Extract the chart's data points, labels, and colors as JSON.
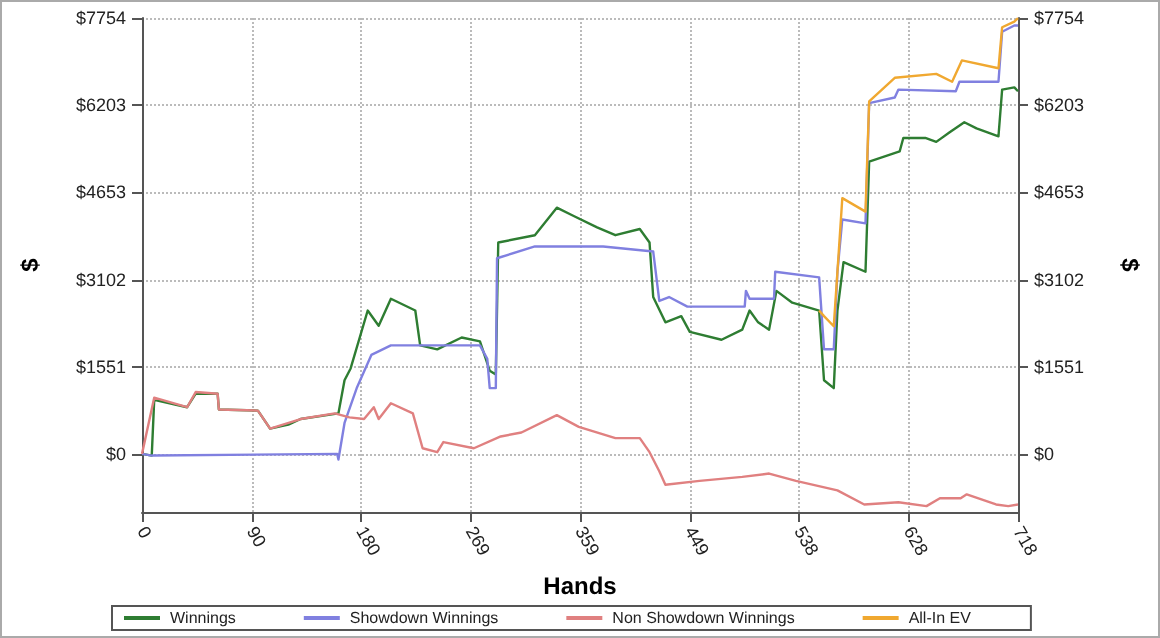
{
  "chart_data": {
    "type": "line",
    "xlabel": "Hands",
    "ylabel": "$",
    "y2label": "$",
    "xlim": [
      0,
      718
    ],
    "xticks": [
      0,
      {
        "value": 89.75,
        "label": "90"
      },
      {
        "value": 179.5,
        "label": "180"
      },
      {
        "value": 269.25,
        "label": "269"
      },
      {
        "value": 359,
        "label": "359"
      },
      {
        "value": 448.75,
        "label": "449"
      },
      {
        "value": 538.5,
        "label": "538"
      },
      {
        "value": 628.25,
        "label": "628"
      },
      718
    ],
    "ylim": [
      -1034,
      7754
    ],
    "yticks": [
      {
        "value": 0,
        "label": "$0"
      },
      {
        "value": 1551,
        "label": "$1551"
      },
      {
        "value": 3102,
        "label": "$3102"
      },
      {
        "value": 4653,
        "label": "$4653"
      },
      {
        "value": 6203,
        "label": "$6203"
      },
      {
        "value": 7754,
        "label": "$7754"
      }
    ],
    "y2lim": [
      -1034,
      7754
    ],
    "y2ticks": [
      {
        "value": 0,
        "label": "$0"
      },
      {
        "value": 1551,
        "label": "$1551"
      },
      {
        "value": 3102,
        "label": "$3102"
      },
      {
        "value": 4653,
        "label": "$4653"
      },
      {
        "value": 6203,
        "label": "$6203"
      },
      {
        "value": 7754,
        "label": "$7754"
      }
    ],
    "grid": true,
    "legend": "bottom",
    "marker": "none",
    "line_style": "solid",
    "series": [
      {
        "name": "Winnings",
        "color": "#2e7d32",
        "x": [
          0,
          8,
          10,
          37,
          44,
          62,
          63,
          95,
          105,
          120,
          130,
          161,
          166,
          171,
          185,
          194,
          204,
          224,
          228,
          242,
          262,
          277,
          285,
          290,
          292,
          322,
          340,
          353,
          373,
          388,
          408,
          416,
          419,
          429,
          442,
          449,
          475,
          492,
          498,
          505,
          514,
          520,
          533,
          555,
          559,
          567,
          570,
          575,
          593,
          596,
          621,
          624,
          642,
          651,
          662,
          674,
          684,
          702,
          705,
          715,
          718
        ],
        "values": [
          0,
          -30,
          960,
          830,
          1070,
          1070,
          790,
          770,
          450,
          520,
          620,
          720,
          1310,
          1520,
          2550,
          2280,
          2760,
          2550,
          1930,
          1860,
          2070,
          2000,
          1480,
          1410,
          3760,
          3890,
          4380,
          4240,
          4030,
          3890,
          4000,
          3760,
          2790,
          2340,
          2450,
          2170,
          2030,
          2210,
          2550,
          2340,
          2210,
          2900,
          2690,
          2550,
          1310,
          1170,
          2550,
          3410,
          3240,
          5200,
          5380,
          5620,
          5620,
          5550,
          5720,
          5900,
          5790,
          5650,
          6480,
          6520,
          6450
        ]
      },
      {
        "name": "Showdown Winnings",
        "color": "#8080e0",
        "x": [
          0,
          8,
          10,
          160,
          161,
          166,
          176,
          188,
          204,
          277,
          283,
          285,
          290,
          291,
          322,
          378,
          419,
          424,
          432,
          447,
          494,
          495,
          498,
          518,
          519,
          555,
          559,
          567,
          570,
          574,
          593,
          596,
          617,
          620,
          667,
          670,
          702,
          705,
          715,
          718
        ],
        "values": [
          0,
          -30,
          -30,
          0,
          -100,
          550,
          1170,
          1760,
          1930,
          1930,
          1690,
          1170,
          1170,
          3480,
          3690,
          3690,
          3600,
          2720,
          2790,
          2620,
          2620,
          2900,
          2760,
          2760,
          3240,
          3140,
          1860,
          1860,
          3240,
          4170,
          4100,
          6240,
          6340,
          6480,
          6450,
          6620,
          6620,
          7510,
          7620,
          7620
        ]
      },
      {
        "name": "Non Showdown Winnings",
        "color": "#e08080",
        "x": [
          0,
          10,
          37,
          44,
          62,
          63,
          95,
          105,
          130,
          158,
          170,
          182,
          190,
          194,
          204,
          222,
          230,
          242,
          247,
          272,
          294,
          311,
          340,
          358,
          388,
          408,
          416,
          424,
          429,
          457,
          492,
          514,
          536,
          570,
          592,
          620,
          643,
          654,
          671,
          676,
          700,
          710,
          718
        ],
        "values": [
          0,
          1000,
          830,
          1100,
          1070,
          790,
          770,
          450,
          620,
          720,
          650,
          620,
          830,
          620,
          900,
          720,
          100,
          30,
          210,
          100,
          310,
          380,
          690,
          480,
          280,
          280,
          30,
          -310,
          -550,
          -480,
          -410,
          -350,
          -480,
          -650,
          -900,
          -860,
          -930,
          -790,
          -790,
          -720,
          -900,
          -930,
          -900
        ]
      },
      {
        "name": "All-In EV",
        "color": "#f0a830",
        "x": [
          555,
          559,
          567,
          570,
          574,
          593,
          596,
          617,
          651,
          664,
          672,
          702,
          705,
          715,
          718
        ],
        "values": [
          2550,
          2450,
          2270,
          3240,
          4550,
          4310,
          6270,
          6690,
          6760,
          6620,
          7000,
          6860,
          7590,
          7690,
          7750
        ]
      }
    ]
  }
}
